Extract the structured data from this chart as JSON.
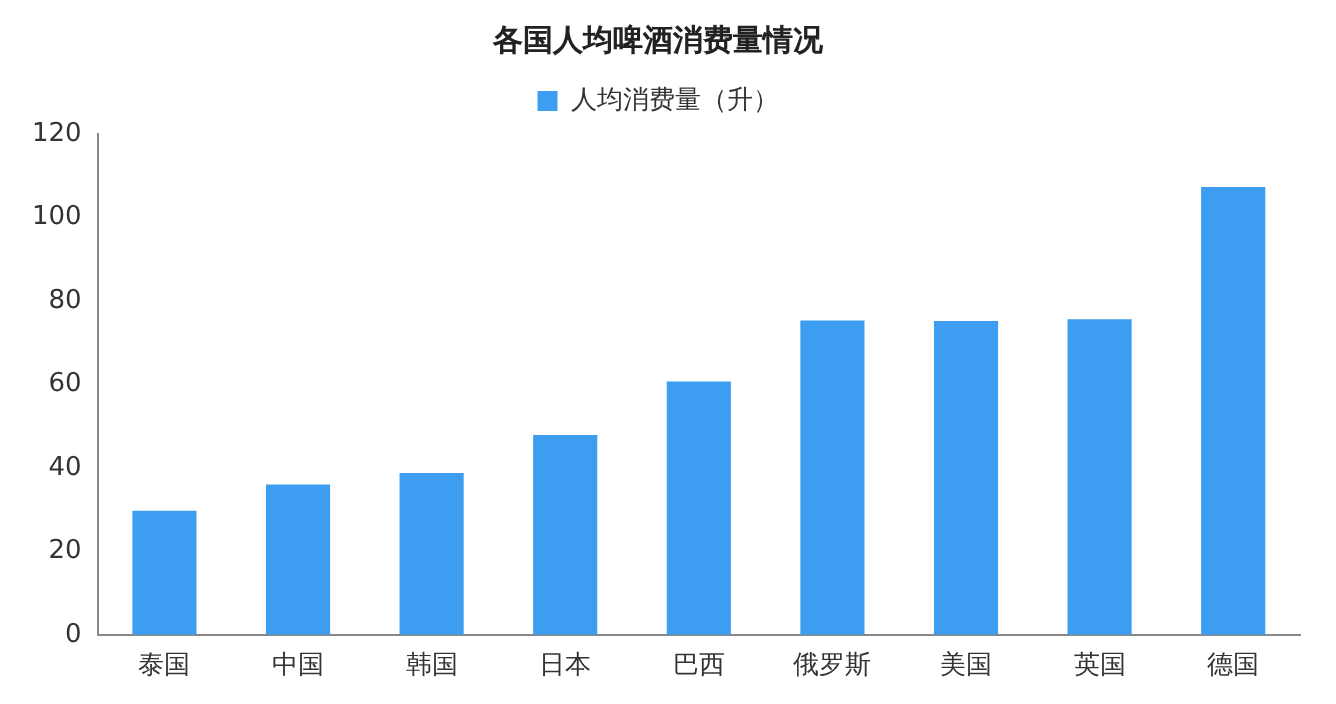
{
  "chart_data": {
    "type": "bar",
    "title": "各国人均啤酒消费量情况",
    "categories": [
      "泰国",
      "中国",
      "韩国",
      "日本",
      "巴西",
      "俄罗斯",
      "美国",
      "英国",
      "德国"
    ],
    "series": [
      {
        "name": "人均消费量（升）",
        "color": "#3d9df0",
        "values": [
          29.7,
          36,
          38.8,
          47.9,
          60.7,
          75.3,
          75.2,
          75.6,
          107.3
        ]
      }
    ],
    "ylim": [
      0,
      120
    ],
    "yticks": [
      0,
      20,
      40,
      60,
      80,
      100,
      120
    ],
    "grid": false,
    "legend": "top"
  }
}
